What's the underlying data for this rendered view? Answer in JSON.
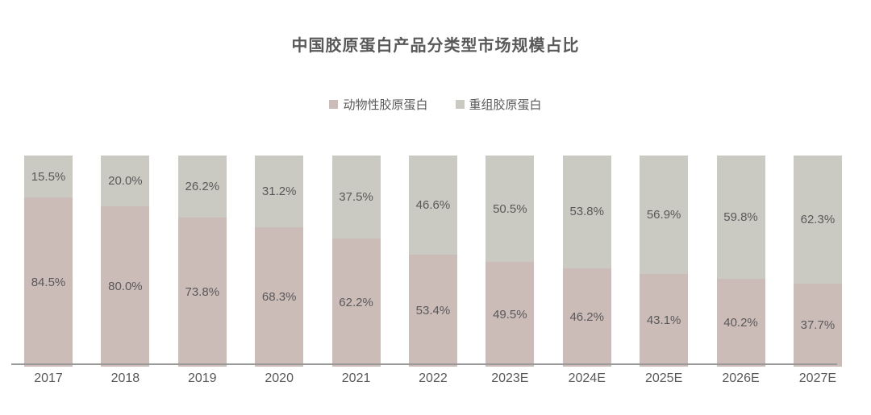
{
  "chart_data": {
    "type": "bar",
    "stacked": true,
    "percent_stacked": true,
    "title": "中国胶原蛋白产品分类型市场规模占比",
    "categories": [
      "2017",
      "2018",
      "2019",
      "2020",
      "2021",
      "2022",
      "2023E",
      "2024E",
      "2025E",
      "2026E",
      "2027E"
    ],
    "series": [
      {
        "name": "动物性胶原蛋白",
        "color": "#ccbcb8",
        "position": "bottom",
        "values": [
          84.5,
          80.0,
          73.8,
          68.3,
          62.2,
          53.4,
          49.5,
          46.2,
          43.1,
          40.2,
          37.7
        ]
      },
      {
        "name": "重组胶原蛋白",
        "color": "#cbcac2",
        "position": "top",
        "values": [
          15.5,
          20.0,
          26.2,
          31.2,
          37.5,
          46.6,
          50.5,
          53.8,
          56.9,
          59.8,
          62.3
        ]
      }
    ],
    "value_suffix": "%",
    "data_labels": "centered-in-segment",
    "legend_position": "top",
    "grid": false,
    "xlabel": "",
    "ylabel": "",
    "ylim": [
      0,
      100
    ],
    "y_axis_visible": false
  },
  "colors": {
    "text": "#595959",
    "axis_line": "#999999",
    "background": "#ffffff"
  }
}
